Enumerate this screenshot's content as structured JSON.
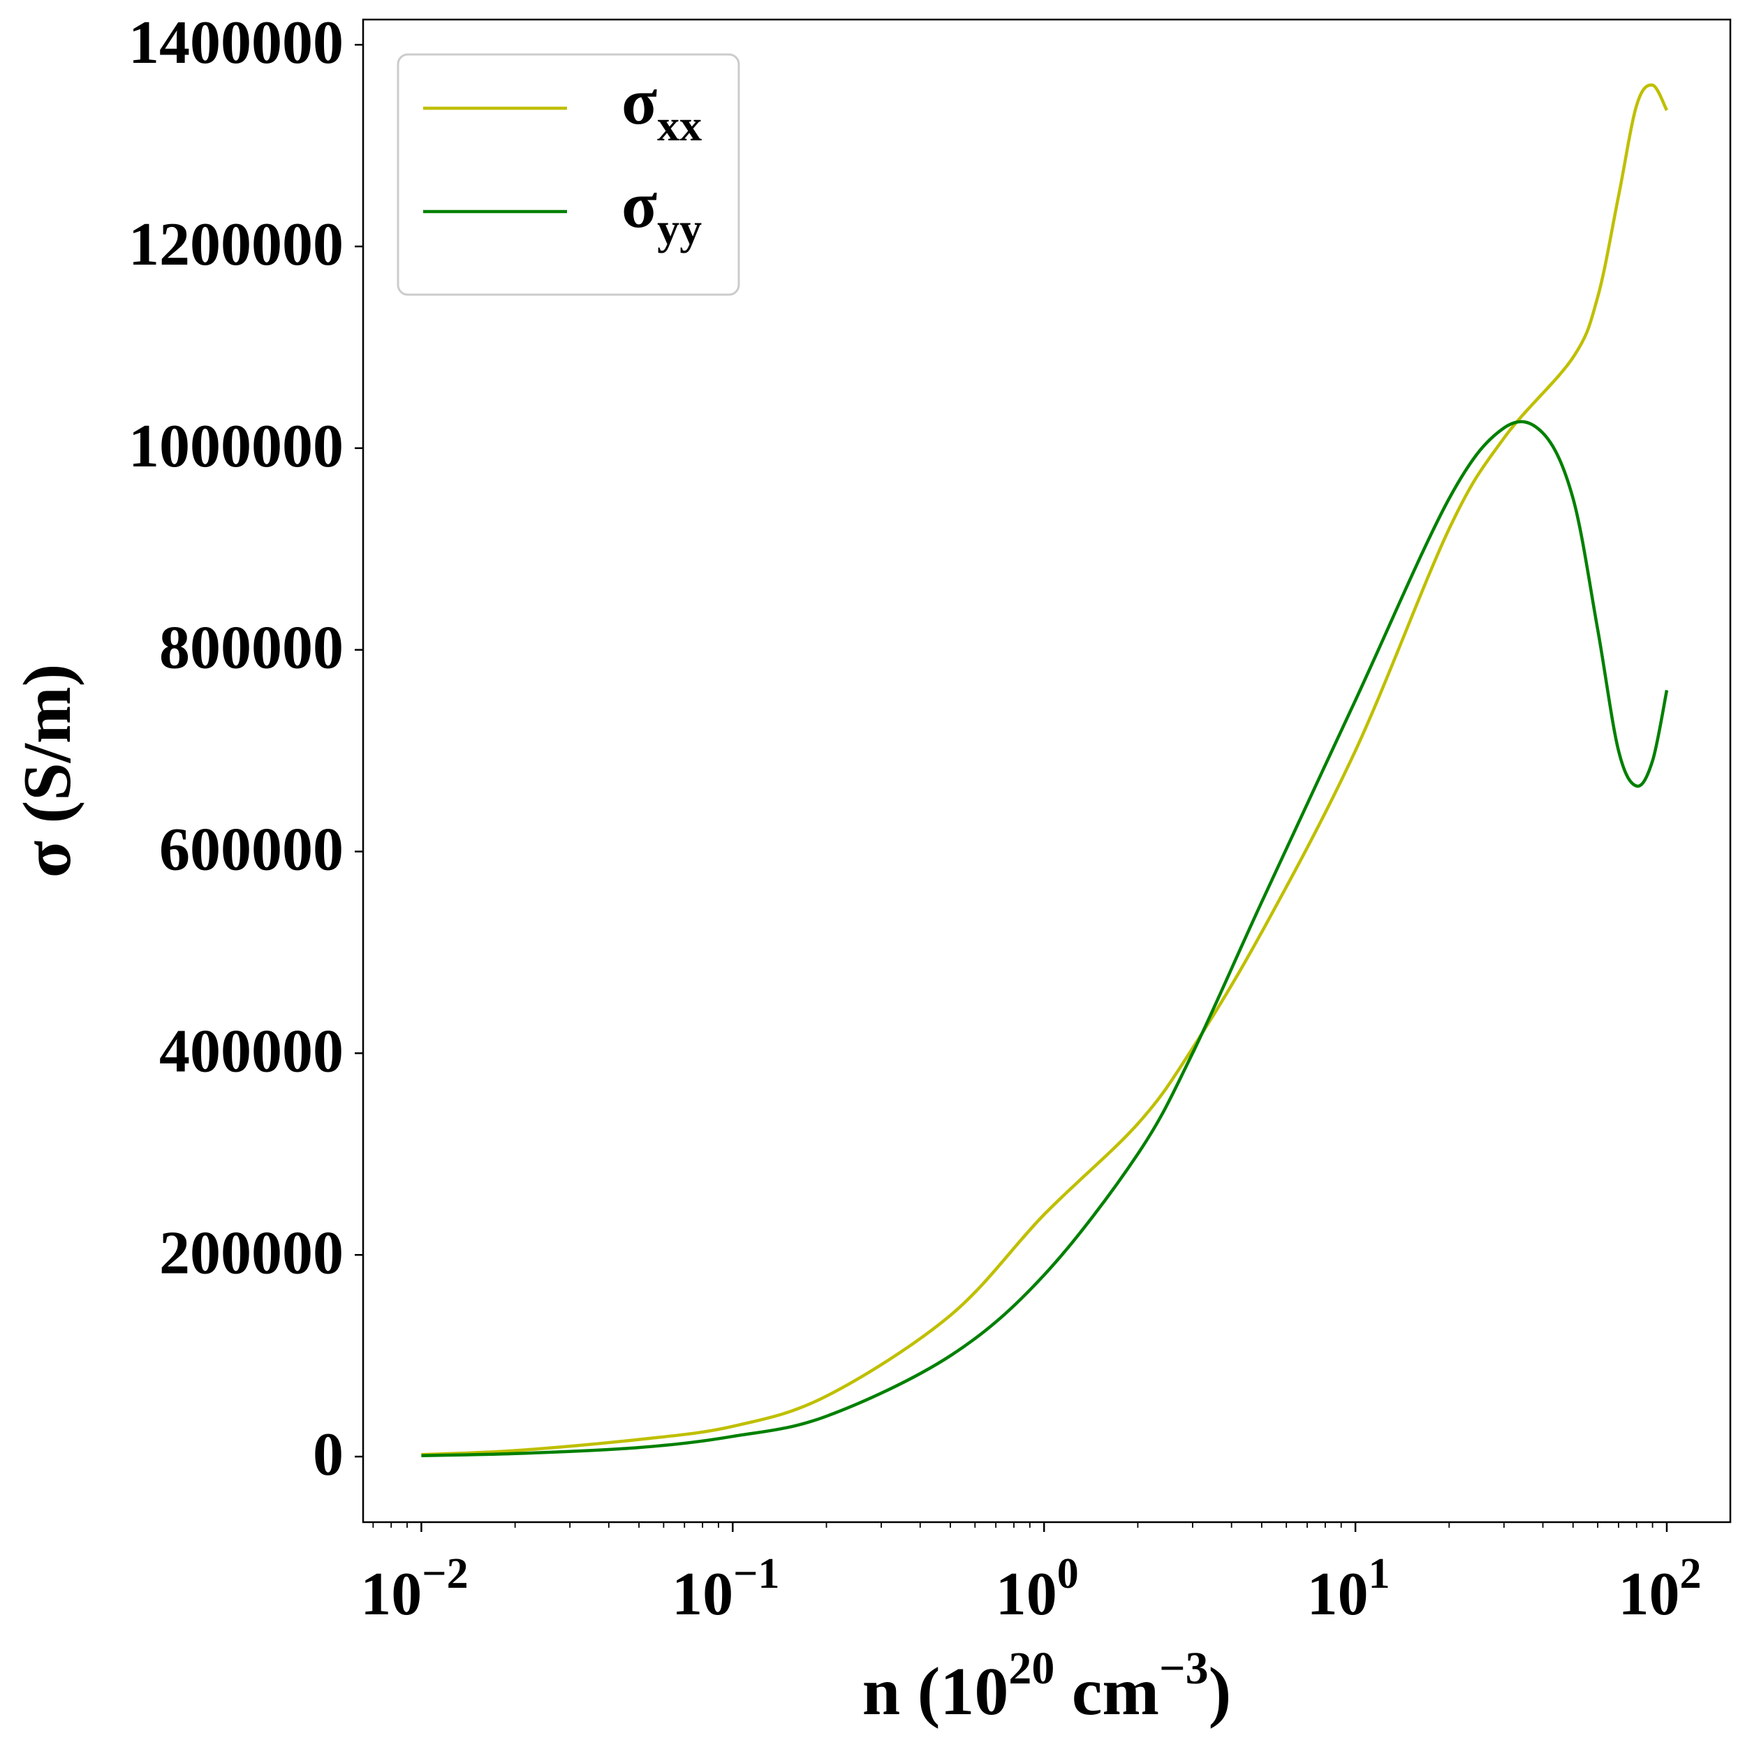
{
  "chart_data": {
    "type": "line",
    "xscale": "log",
    "xlim": [
      0.0065,
      160
    ],
    "ylim": [
      -65000,
      1425000
    ],
    "xlabel": {
      "base": "n (10",
      "sup1": "20",
      "mid": " cm",
      "sup2": "−3",
      "end": ")"
    },
    "ylabel": "σ (S/m)",
    "legend_position": "top-left",
    "grid": false,
    "yticks": [
      {
        "value": 0,
        "label": "0"
      },
      {
        "value": 200000,
        "label": "200000"
      },
      {
        "value": 400000,
        "label": "400000"
      },
      {
        "value": 600000,
        "label": "600000"
      },
      {
        "value": 800000,
        "label": "800000"
      },
      {
        "value": 1000000,
        "label": "1000000"
      },
      {
        "value": 1200000,
        "label": "1200000"
      },
      {
        "value": 1400000,
        "label": "1400000"
      }
    ],
    "xticks": [
      {
        "value": 0.01,
        "base": "10",
        "exp": "−2"
      },
      {
        "value": 0.1,
        "base": "10",
        "exp": "−1"
      },
      {
        "value": 1,
        "base": "10",
        "exp": "0"
      },
      {
        "value": 10,
        "base": "10",
        "exp": "1"
      },
      {
        "value": 100,
        "base": "10",
        "exp": "2"
      }
    ],
    "series": [
      {
        "name_base": "σ",
        "name_sub": "xx",
        "color": "#bfbf00",
        "x": [
          0.01,
          0.02,
          0.05,
          0.1,
          0.2,
          0.5,
          1,
          2,
          3,
          5,
          10,
          20,
          30,
          50,
          60,
          70,
          80,
          90,
          100
        ],
        "y": [
          2000,
          6000,
          17000,
          30000,
          60000,
          140000,
          240000,
          330000,
          405000,
          520000,
          700000,
          920000,
          1010000,
          1090000,
          1150000,
          1250000,
          1340000,
          1360000,
          1335000
        ]
      },
      {
        "name_base": "σ",
        "name_sub": "yy",
        "color": "#008000",
        "x": [
          0.01,
          0.02,
          0.05,
          0.1,
          0.2,
          0.5,
          1,
          2,
          3,
          5,
          10,
          20,
          30,
          40,
          50,
          60,
          70,
          80,
          90,
          100
        ],
        "y": [
          1000,
          3000,
          9000,
          20000,
          40000,
          100000,
          180000,
          300000,
          400000,
          550000,
          750000,
          950000,
          1020000,
          1015000,
          950000,
          820000,
          700000,
          665000,
          690000,
          760000
        ]
      }
    ]
  }
}
